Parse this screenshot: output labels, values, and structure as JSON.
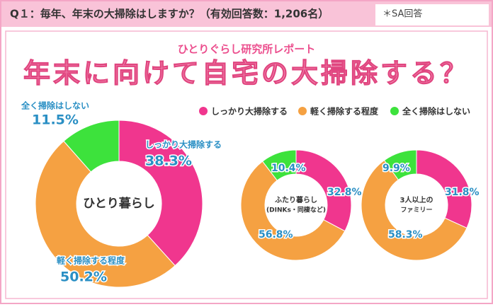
{
  "question": "Q１：毎年、年末の大掃除はしますか？（有効回答数：1,206名）",
  "note": "＊SA回答",
  "report": "ひとりぐらし研究所レポート",
  "headline": "年末に向けて自宅の大掃除する？",
  "chart_data": [
    {
      "type": "pie",
      "donut": true,
      "center_label": [
        "ひとり暮らし"
      ],
      "categories": [
        "しっかり大掃除する",
        "軽く掃除する程度",
        "全く掃除はしない"
      ],
      "values": [
        38.3,
        50.2,
        11.5
      ],
      "value_labels": [
        "38.3%",
        "50.2%",
        "11.5%"
      ],
      "colors": [
        "#f0368e",
        "#f5a142",
        "#3de23c"
      ]
    },
    {
      "type": "pie",
      "donut": true,
      "center_label": [
        "ふたり暮らし",
        "(DINKs・同棲など)"
      ],
      "categories": [
        "しっかり大掃除する",
        "軽く掃除する程度",
        "全く掃除はしない"
      ],
      "values": [
        32.8,
        56.8,
        10.4
      ],
      "value_labels": [
        "32.8%",
        "56.8%",
        "10.4%"
      ],
      "colors": [
        "#f0368e",
        "#f5a142",
        "#3de23c"
      ]
    },
    {
      "type": "pie",
      "donut": true,
      "center_label": [
        "3人以上の",
        "ファミリー"
      ],
      "categories": [
        "しっかり大掃除する",
        "軽く掃除する程度",
        "全く掃除はしない"
      ],
      "values": [
        31.8,
        58.3,
        9.9
      ],
      "value_labels": [
        "31.8%",
        "58.3%",
        "9.9%"
      ],
      "colors": [
        "#f0368e",
        "#f5a142",
        "#3de23c"
      ]
    }
  ]
}
